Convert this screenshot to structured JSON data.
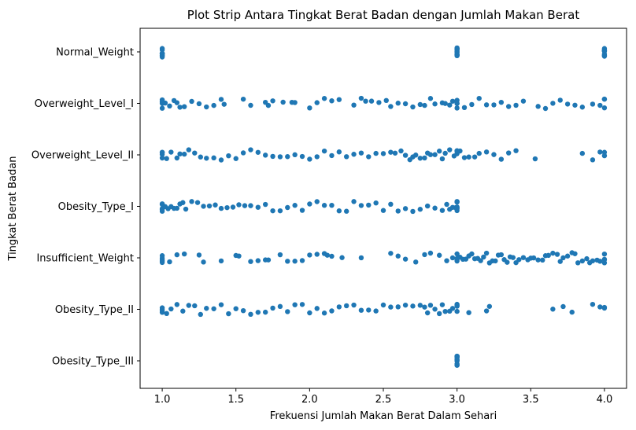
{
  "chart_data": {
    "type": "scatter",
    "subtype": "strip",
    "title": "Plot Strip Antara Tingkat Berat Badan dengan Jumlah Makan Berat",
    "xlabel": "Frekuensi Jumlah Makan Berat Dalam Sehari",
    "ylabel": "Tingkat Berat Badan",
    "xlim": [
      0.85,
      4.15
    ],
    "x_ticks": [
      "1.0",
      "1.5",
      "2.0",
      "2.5",
      "3.0",
      "3.5",
      "4.0"
    ],
    "x_tick_values": [
      1.0,
      1.5,
      2.0,
      2.5,
      3.0,
      3.5,
      4.0
    ],
    "categories": [
      "Normal_Weight",
      "Overweight_Level_I",
      "Overweight_Level_II",
      "Obesity_Type_I",
      "Insufficient_Weight",
      "Obesity_Type_II",
      "Obesity_Type_III"
    ],
    "point_color": "#1f77b4",
    "grid": false,
    "series": [
      {
        "category": "Normal_Weight",
        "x": [
          1.0,
          1.0,
          1.0,
          1.0,
          1.0,
          1.0,
          1.0,
          1.0,
          1.0,
          1.0,
          3.0,
          3.0,
          3.0,
          3.0,
          3.0,
          3.0,
          3.0,
          3.0,
          3.0,
          3.0,
          3.0,
          3.0,
          4.0,
          4.0,
          4.0,
          4.0,
          4.0,
          4.0,
          4.0,
          4.0,
          4.0,
          4.0
        ]
      },
      {
        "category": "Overweight_Level_I",
        "x": [
          1.0,
          1.0,
          1.0,
          1.0,
          1.0,
          1.02,
          1.05,
          1.08,
          1.1,
          1.12,
          1.15,
          1.2,
          1.25,
          1.3,
          1.35,
          1.4,
          1.42,
          1.55,
          1.6,
          1.7,
          1.72,
          1.75,
          1.82,
          1.88,
          1.9,
          2.0,
          2.05,
          2.1,
          2.15,
          2.2,
          2.3,
          2.35,
          2.38,
          2.42,
          2.47,
          2.52,
          2.55,
          2.6,
          2.65,
          2.7,
          2.75,
          2.78,
          2.82,
          2.85,
          2.9,
          2.92,
          2.95,
          2.97,
          3.0,
          3.0,
          3.0,
          3.0,
          3.05,
          3.1,
          3.15,
          3.2,
          3.25,
          3.3,
          3.35,
          3.4,
          3.45,
          3.55,
          3.6,
          3.65,
          3.7,
          3.75,
          3.8,
          3.85,
          3.92,
          3.97,
          4.0,
          4.0,
          4.0
        ]
      },
      {
        "category": "Overweight_Level_II",
        "x": [
          1.0,
          1.0,
          1.0,
          1.0,
          1.03,
          1.06,
          1.1,
          1.12,
          1.15,
          1.18,
          1.22,
          1.26,
          1.3,
          1.35,
          1.4,
          1.45,
          1.5,
          1.55,
          1.6,
          1.65,
          1.7,
          1.75,
          1.8,
          1.85,
          1.9,
          1.95,
          2.0,
          2.05,
          2.1,
          2.15,
          2.2,
          2.25,
          2.3,
          2.35,
          2.4,
          2.45,
          2.5,
          2.55,
          2.58,
          2.62,
          2.65,
          2.68,
          2.7,
          2.72,
          2.75,
          2.78,
          2.8,
          2.82,
          2.85,
          2.88,
          2.9,
          2.92,
          2.95,
          2.98,
          3.0,
          3.0,
          3.0,
          3.0,
          3.02,
          3.05,
          3.08,
          3.12,
          3.15,
          3.2,
          3.25,
          3.3,
          3.35,
          3.4,
          3.53,
          3.85,
          3.92,
          3.97,
          4.0,
          4.0
        ]
      },
      {
        "category": "Obesity_Type_I",
        "x": [
          1.0,
          1.0,
          1.0,
          1.0,
          1.0,
          1.0,
          1.02,
          1.04,
          1.06,
          1.08,
          1.1,
          1.12,
          1.14,
          1.16,
          1.2,
          1.24,
          1.28,
          1.32,
          1.36,
          1.4,
          1.44,
          1.48,
          1.52,
          1.56,
          1.6,
          1.65,
          1.7,
          1.75,
          1.8,
          1.85,
          1.9,
          1.95,
          2.0,
          2.05,
          2.1,
          2.15,
          2.2,
          2.25,
          2.3,
          2.35,
          2.4,
          2.45,
          2.5,
          2.55,
          2.6,
          2.65,
          2.7,
          2.75,
          2.8,
          2.85,
          2.9,
          2.93,
          2.95,
          2.97,
          2.99,
          3.0,
          3.0,
          3.0,
          3.0,
          3.0,
          3.0
        ]
      },
      {
        "category": "Insufficient_Weight",
        "x": [
          1.0,
          1.0,
          1.0,
          1.0,
          1.0,
          1.05,
          1.1,
          1.15,
          1.25,
          1.28,
          1.4,
          1.5,
          1.52,
          1.6,
          1.65,
          1.7,
          1.72,
          1.8,
          1.85,
          1.9,
          1.95,
          2.0,
          2.05,
          2.1,
          2.12,
          2.15,
          2.22,
          2.35,
          2.55,
          2.6,
          2.65,
          2.72,
          2.78,
          2.82,
          2.88,
          2.93,
          2.97,
          3.0,
          3.0,
          3.0,
          3.0,
          3.02,
          3.04,
          3.06,
          3.08,
          3.1,
          3.12,
          3.14,
          3.16,
          3.18,
          3.2,
          3.22,
          3.24,
          3.26,
          3.28,
          3.3,
          3.32,
          3.34,
          3.36,
          3.38,
          3.4,
          3.42,
          3.45,
          3.48,
          3.5,
          3.52,
          3.55,
          3.58,
          3.6,
          3.62,
          3.65,
          3.68,
          3.7,
          3.72,
          3.75,
          3.78,
          3.8,
          3.82,
          3.85,
          3.88,
          3.9,
          3.92,
          3.95,
          3.97,
          4.0,
          4.0,
          4.0,
          4.0
        ]
      },
      {
        "category": "Obesity_Type_II",
        "x": [
          1.0,
          1.0,
          1.0,
          1.0,
          1.03,
          1.06,
          1.1,
          1.14,
          1.18,
          1.22,
          1.26,
          1.3,
          1.35,
          1.4,
          1.45,
          1.5,
          1.55,
          1.6,
          1.65,
          1.7,
          1.75,
          1.8,
          1.85,
          1.9,
          1.95,
          2.0,
          2.05,
          2.1,
          2.15,
          2.2,
          2.25,
          2.3,
          2.35,
          2.4,
          2.45,
          2.5,
          2.55,
          2.6,
          2.65,
          2.7,
          2.75,
          2.78,
          2.8,
          2.82,
          2.85,
          2.88,
          2.9,
          2.92,
          2.95,
          2.97,
          3.0,
          3.0,
          3.0,
          3.0,
          3.08,
          3.2,
          3.22,
          3.65,
          3.72,
          3.78,
          3.92,
          3.97,
          4.0,
          4.0
        ]
      },
      {
        "category": "Obesity_Type_III",
        "x": [
          3.0,
          3.0,
          3.0,
          3.0,
          3.0,
          3.0,
          3.0,
          3.0,
          3.0,
          3.0,
          3.0,
          3.0
        ]
      }
    ]
  }
}
